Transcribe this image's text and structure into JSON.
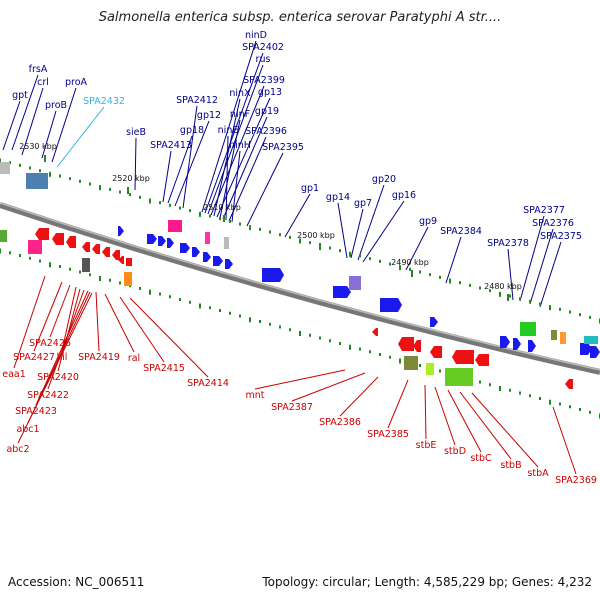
{
  "title": "Salmonella enterica subsp. enterica serovar Paratyphi A str....",
  "footer": {
    "accession": "Accession: NC_006511",
    "summary": "Topology: circular; Length: 4,585,229 bp; Genes: 4,232"
  },
  "colors": {
    "forward_label": "#00008b",
    "reverse_label": "#cc0000",
    "highlight_label": "#33b5e5",
    "backbone": "#777777",
    "forward_gene": "#1a1aee",
    "reverse_gene": "#ee1111",
    "tick": "#228822"
  },
  "ticks": [
    {
      "label": "2530 kbp"
    },
    {
      "label": "2520 kbp"
    },
    {
      "label": "2510 kbp"
    },
    {
      "label": "2500 kbp"
    },
    {
      "label": "2490 kbp"
    },
    {
      "label": "2480 kbp"
    }
  ],
  "forward_labels": [
    {
      "text": "gpt"
    },
    {
      "text": "frsA"
    },
    {
      "text": "crl"
    },
    {
      "text": "proB"
    },
    {
      "text": "proA"
    },
    {
      "text": "SPA2432",
      "highlight": true
    },
    {
      "text": "sieB"
    },
    {
      "text": "SPA2413"
    },
    {
      "text": "gp18"
    },
    {
      "text": "gp12"
    },
    {
      "text": "SPA2412"
    },
    {
      "text": "ninD"
    },
    {
      "text": "SPA2402"
    },
    {
      "text": "rus"
    },
    {
      "text": "SPA2399"
    },
    {
      "text": "ninX"
    },
    {
      "text": "gp13"
    },
    {
      "text": "ninF"
    },
    {
      "text": "gp19"
    },
    {
      "text": "ninE"
    },
    {
      "text": "SPA2396"
    },
    {
      "text": "ninH"
    },
    {
      "text": "SPA2395"
    },
    {
      "text": "gp1"
    },
    {
      "text": "gp14"
    },
    {
      "text": "gp7"
    },
    {
      "text": "gp20"
    },
    {
      "text": "gp16"
    },
    {
      "text": "gp9"
    },
    {
      "text": "SPA2384"
    },
    {
      "text": "SPA2378"
    },
    {
      "text": "SPA2377"
    },
    {
      "text": "SPA2376"
    },
    {
      "text": "SPA2375"
    }
  ],
  "reverse_labels": [
    {
      "text": "eaa1"
    },
    {
      "text": "SPA2427"
    },
    {
      "text": "SPA2426"
    },
    {
      "text": "kil"
    },
    {
      "text": "SPA2420"
    },
    {
      "text": "SPA2422"
    },
    {
      "text": "SPA2423"
    },
    {
      "text": "abc1"
    },
    {
      "text": "abc2"
    },
    {
      "text": "SPA2419"
    },
    {
      "text": "ral"
    },
    {
      "text": "SPA2415"
    },
    {
      "text": "SPA2414"
    },
    {
      "text": "mnt"
    },
    {
      "text": "SPA2387"
    },
    {
      "text": "SPA2386"
    },
    {
      "text": "SPA2385"
    },
    {
      "text": "stbE"
    },
    {
      "text": "stbD"
    },
    {
      "text": "stbC"
    },
    {
      "text": "stbB"
    },
    {
      "text": "stbA"
    },
    {
      "text": "SPA2369"
    }
  ]
}
